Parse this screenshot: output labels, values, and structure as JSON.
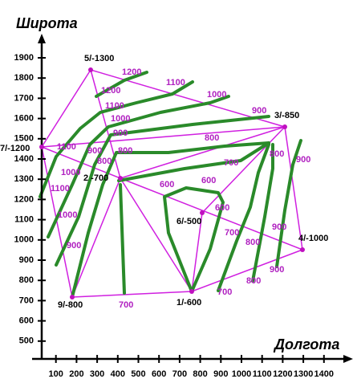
{
  "axes": {
    "y_label": "Широта",
    "x_label": "Долгота",
    "xticks": [
      100,
      200,
      300,
      400,
      500,
      600,
      700,
      800,
      900,
      1000,
      1100,
      1200,
      1300,
      1400
    ],
    "yticks": [
      500,
      600,
      700,
      800,
      900,
      1000,
      1100,
      1200,
      1300,
      1400,
      1500,
      1600,
      1700,
      1800,
      1900
    ]
  },
  "points": [
    {
      "label": "5/-1300"
    },
    {
      "label": "3/-850"
    },
    {
      "label": "7/-1200"
    },
    {
      "label": "2 -700"
    },
    {
      "label": "6/-500"
    },
    {
      "label": "4/-1000"
    },
    {
      "label": "9/-800"
    },
    {
      "label": "1/-600"
    }
  ],
  "contour_labels": [
    1200,
    1200,
    1100,
    1000,
    900,
    1100,
    1000,
    900,
    800,
    1100,
    900,
    1000,
    800,
    1100,
    1000,
    900,
    800,
    800,
    700,
    600,
    600,
    600,
    700,
    800,
    900,
    900,
    900,
    800,
    700,
    700
  ]
}
